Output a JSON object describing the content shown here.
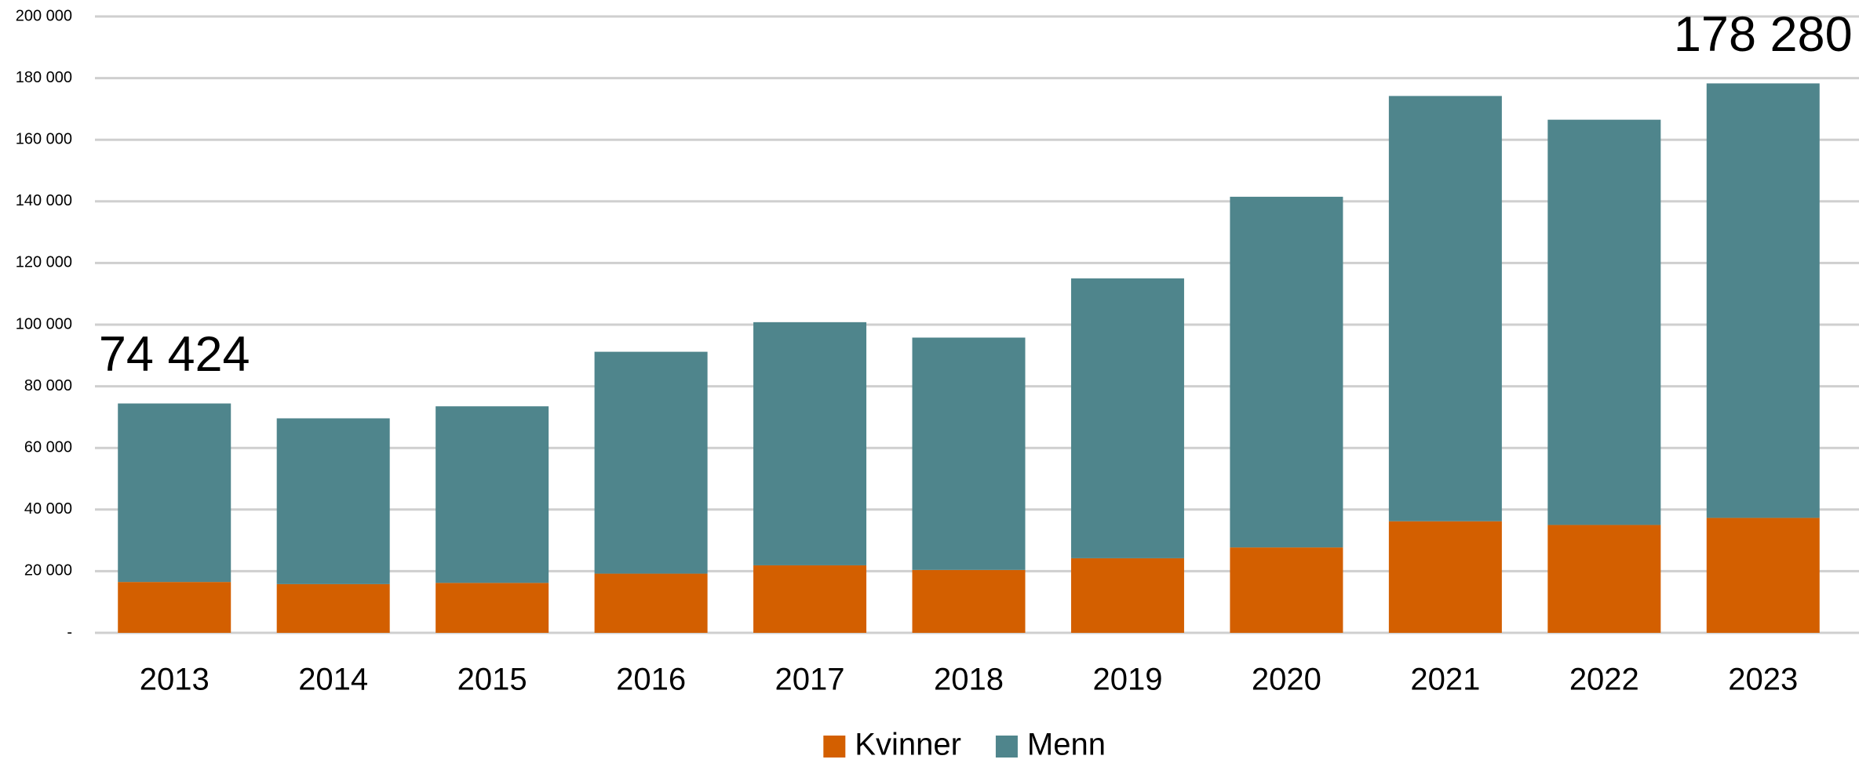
{
  "chart_data": {
    "type": "stacked_bar",
    "categories": [
      "2013",
      "2014",
      "2015",
      "2016",
      "2017",
      "2018",
      "2019",
      "2020",
      "2021",
      "2022",
      "2023"
    ],
    "series": [
      {
        "name": "Kvinner",
        "color": "#d35f00",
        "values": [
          16500,
          15800,
          16200,
          19200,
          21900,
          20400,
          24200,
          27700,
          36200,
          35000,
          37300
        ]
      },
      {
        "name": "Menn",
        "color": "#4f858c",
        "values": [
          57924,
          53800,
          57300,
          72000,
          78900,
          75400,
          90800,
          113800,
          138000,
          131500,
          140980
        ]
      }
    ],
    "annotations": [
      {
        "x": "2013",
        "value": 74424,
        "label": "74 424"
      },
      {
        "x": "2023",
        "value": 178280,
        "label": "178 280"
      }
    ],
    "ylim": [
      0,
      200000
    ],
    "yticks": [
      {
        "value": 0,
        "label": "-"
      },
      {
        "value": 20000,
        "label": "20 000"
      },
      {
        "value": 40000,
        "label": "40 000"
      },
      {
        "value": 60000,
        "label": "60 000"
      },
      {
        "value": 80000,
        "label": "80 000"
      },
      {
        "value": 100000,
        "label": "100 000"
      },
      {
        "value": 120000,
        "label": "120 000"
      },
      {
        "value": 140000,
        "label": "140 000"
      },
      {
        "value": 160000,
        "label": "160 000"
      },
      {
        "value": 180000,
        "label": "180 000"
      },
      {
        "value": 200000,
        "label": "200 000"
      }
    ],
    "grid": true,
    "legend": "bottom"
  }
}
